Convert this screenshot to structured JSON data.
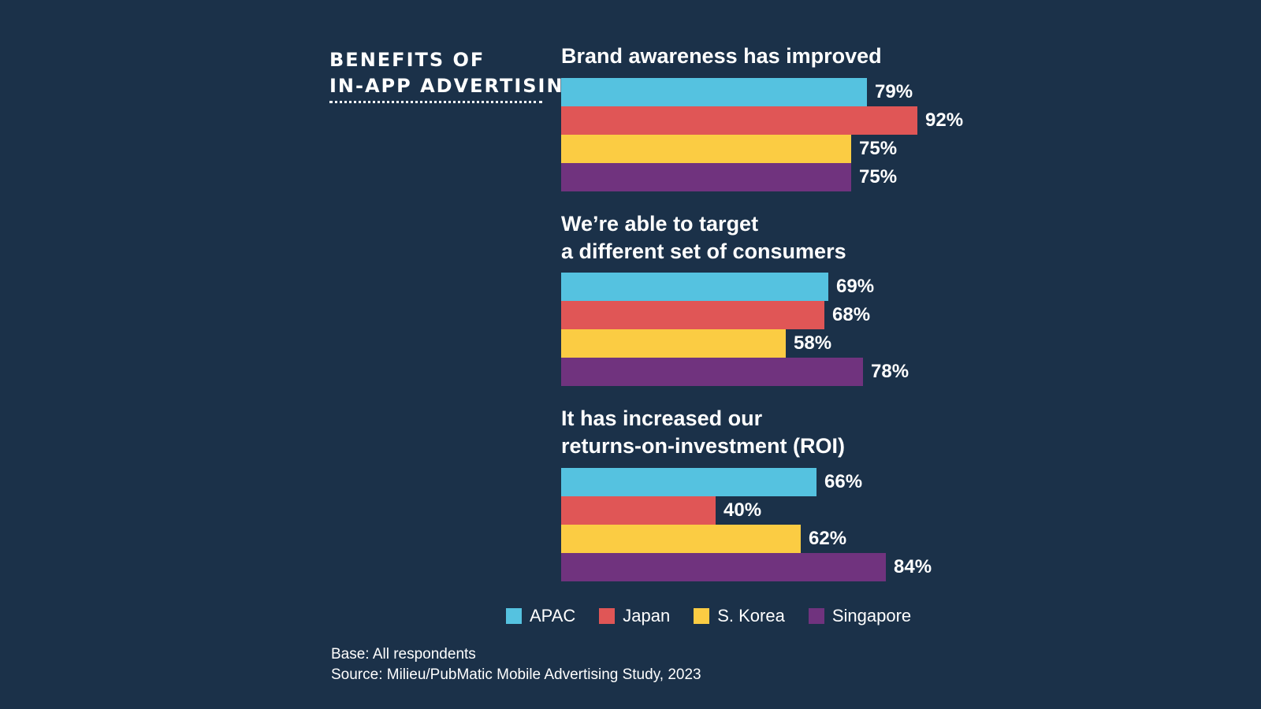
{
  "chart_data": {
    "type": "bar",
    "orientation": "horizontal",
    "title": "BENEFITS OF\nIN-APP ADVERTISING",
    "value_format": "{v}%",
    "series": [
      {
        "name": "APAC",
        "color": "#55c2e0"
      },
      {
        "name": "Japan",
        "color": "#e05656"
      },
      {
        "name": "S. Korea",
        "color": "#fbcc43"
      },
      {
        "name": "Singapore",
        "color": "#70337e"
      }
    ],
    "groups": [
      {
        "label": "Brand awareness has improved",
        "values": [
          79,
          92,
          75,
          75
        ]
      },
      {
        "label": "We’re able to target\na different set of consumers",
        "values": [
          69,
          68,
          58,
          78
        ]
      },
      {
        "label": "It has increased our\nreturns-on-investment (ROI)",
        "values": [
          66,
          40,
          62,
          84
        ]
      }
    ],
    "legend_placement": "bottom",
    "grid": false
  },
  "footnote": {
    "base": "Base: All respondents",
    "source": "Source: Milieu/PubMatic Mobile Advertising Study, 2023"
  }
}
